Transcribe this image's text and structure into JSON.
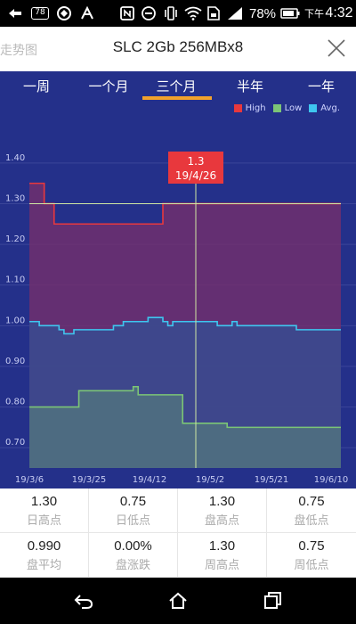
{
  "status_bar": {
    "badge_count": "78",
    "battery_percent": "78%",
    "ampm": "下午",
    "time": "4:32",
    "icons": [
      "bluetooth-usb-icon",
      "notification-badge-icon",
      "app-icon",
      "app-icon",
      "nfc-icon",
      "dnd-icon",
      "vibrate-icon",
      "wifi-icon",
      "sim-icon",
      "signal-icon",
      "battery-icon"
    ]
  },
  "header": {
    "left_text": "走势图",
    "title": "SLC 2Gb 256MBx8"
  },
  "tabs": [
    {
      "label": "一周"
    },
    {
      "label": "一个月"
    },
    {
      "label": "三个月"
    },
    {
      "label": "半年"
    },
    {
      "label": "一年"
    }
  ],
  "active_tab": "三个月",
  "legend": [
    {
      "name": "High",
      "color": "#e8383d"
    },
    {
      "name": "Low",
      "color": "#7cc576"
    },
    {
      "name": "Avg.",
      "color": "#3ec6ef"
    }
  ],
  "tooltip": {
    "value": "1.3",
    "date": "19/4/26"
  },
  "chart_data": {
    "type": "line",
    "x_tick_labels": [
      "19/3/6",
      "19/3/25",
      "19/4/12",
      "19/5/2",
      "19/5/21",
      "19/6/10"
    ],
    "y_tick_labels": [
      "0.70",
      "0.80",
      "0.90",
      "1.00",
      "1.10",
      "1.20",
      "1.30",
      "1.40"
    ],
    "ylim": [
      0.65,
      1.45
    ],
    "grid": "horizontal",
    "legend_position": "top-right",
    "crosshair": {
      "date": "19/4/26",
      "value": 1.3
    },
    "series": [
      {
        "name": "High",
        "color": "#e8383d",
        "values": [
          1.35,
          1.35,
          1.35,
          1.3,
          1.3,
          1.25,
          1.25,
          1.25,
          1.25,
          1.25,
          1.25,
          1.25,
          1.25,
          1.25,
          1.25,
          1.25,
          1.25,
          1.25,
          1.25,
          1.25,
          1.25,
          1.25,
          1.25,
          1.25,
          1.25,
          1.25,
          1.25,
          1.3,
          1.3,
          1.3,
          1.3,
          1.3,
          1.3,
          1.3,
          1.3,
          1.3,
          1.3,
          1.3,
          1.3,
          1.3,
          1.3,
          1.3,
          1.3,
          1.3,
          1.3,
          1.3,
          1.3,
          1.3,
          1.3,
          1.3,
          1.3,
          1.3,
          1.3,
          1.3,
          1.3,
          1.3,
          1.3,
          1.3,
          1.3,
          1.3,
          1.3,
          1.3,
          1.3,
          1.3
        ]
      },
      {
        "name": "Low",
        "color": "#7cc576",
        "values": [
          0.8,
          0.8,
          0.8,
          0.8,
          0.8,
          0.8,
          0.8,
          0.8,
          0.8,
          0.8,
          0.84,
          0.84,
          0.84,
          0.84,
          0.84,
          0.84,
          0.84,
          0.84,
          0.84,
          0.84,
          0.84,
          0.85,
          0.83,
          0.83,
          0.83,
          0.83,
          0.83,
          0.83,
          0.83,
          0.83,
          0.83,
          0.76,
          0.76,
          0.76,
          0.76,
          0.76,
          0.76,
          0.76,
          0.76,
          0.76,
          0.75,
          0.75,
          0.75,
          0.75,
          0.75,
          0.75,
          0.75,
          0.75,
          0.75,
          0.75,
          0.75,
          0.75,
          0.75,
          0.75,
          0.75,
          0.75,
          0.75,
          0.75,
          0.75,
          0.75,
          0.75,
          0.75,
          0.75,
          0.75
        ]
      },
      {
        "name": "Avg.",
        "color": "#3ec6ef",
        "values": [
          1.01,
          1.01,
          1.0,
          1.0,
          1.0,
          1.0,
          0.99,
          0.98,
          0.98,
          0.99,
          0.99,
          0.99,
          0.99,
          0.99,
          0.99,
          0.99,
          0.99,
          1.0,
          1.0,
          1.01,
          1.01,
          1.01,
          1.01,
          1.01,
          1.02,
          1.02,
          1.02,
          1.01,
          1.0,
          1.01,
          1.01,
          1.01,
          1.01,
          1.01,
          1.01,
          1.01,
          1.01,
          1.01,
          1.0,
          1.0,
          1.0,
          1.01,
          1.0,
          1.0,
          1.0,
          1.0,
          1.0,
          1.0,
          1.0,
          1.0,
          1.0,
          1.0,
          1.0,
          1.0,
          0.99,
          0.99,
          0.99,
          0.99,
          0.99,
          0.99,
          0.99,
          0.99,
          0.99,
          0.99
        ]
      }
    ]
  },
  "stats": [
    {
      "value": "1.30",
      "label": "日高点"
    },
    {
      "value": "0.75",
      "label": "日低点"
    },
    {
      "value": "1.30",
      "label": "盘高点"
    },
    {
      "value": "0.75",
      "label": "盘低点"
    },
    {
      "value": "0.990",
      "label": "盘平均"
    },
    {
      "value": "0.00%",
      "label": "盘涨跌"
    },
    {
      "value": "1.30",
      "label": "周高点"
    },
    {
      "value": "0.75",
      "label": "周低点"
    }
  ],
  "colors": {
    "panel_bg": "#24308a",
    "tab_underline": "#f2a22c",
    "tooltip_bg": "#e8383d",
    "crosshair": "#cfe7a3"
  }
}
